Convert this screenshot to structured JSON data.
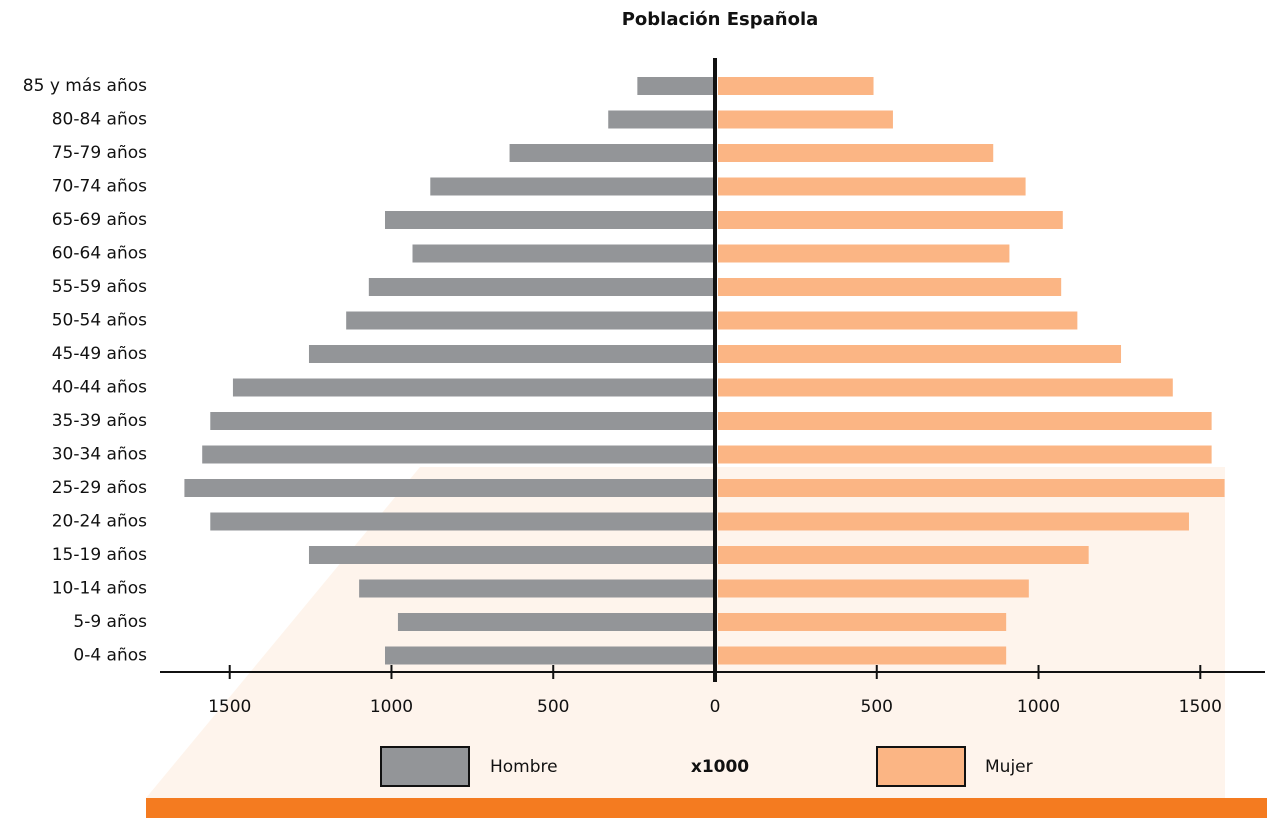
{
  "chart_data": {
    "type": "pyramid",
    "title": "Población Española",
    "categories": [
      "85 y más años",
      "80-84 años",
      "75-79 años",
      "70-74 años",
      "65-69 años",
      "60-64 años",
      "55-59 años",
      "50-54 años",
      "45-49 años",
      "40-44 años",
      "35-39 años",
      "30-34 años",
      "25-29 años",
      "20-24 años",
      "15-19 años",
      "10-14 años",
      "5-9 años",
      "0-4 años"
    ],
    "series": [
      {
        "name": "Hombre",
        "color": "#939598",
        "side": "left",
        "values": [
          240,
          330,
          635,
          880,
          1020,
          935,
          1070,
          1140,
          1255,
          1490,
          1560,
          1585,
          1640,
          1560,
          1255,
          1100,
          980,
          1020
        ]
      },
      {
        "name": "Mujer",
        "color": "#fbb584",
        "side": "right",
        "values": [
          490,
          550,
          860,
          960,
          1075,
          910,
          1070,
          1120,
          1255,
          1415,
          1535,
          1535,
          1575,
          1465,
          1155,
          970,
          900,
          900
        ]
      }
    ],
    "xlim": [
      0,
      1700
    ],
    "xticks": [
      0,
      500,
      1000,
      1500
    ],
    "unit_note": "x1000"
  }
}
